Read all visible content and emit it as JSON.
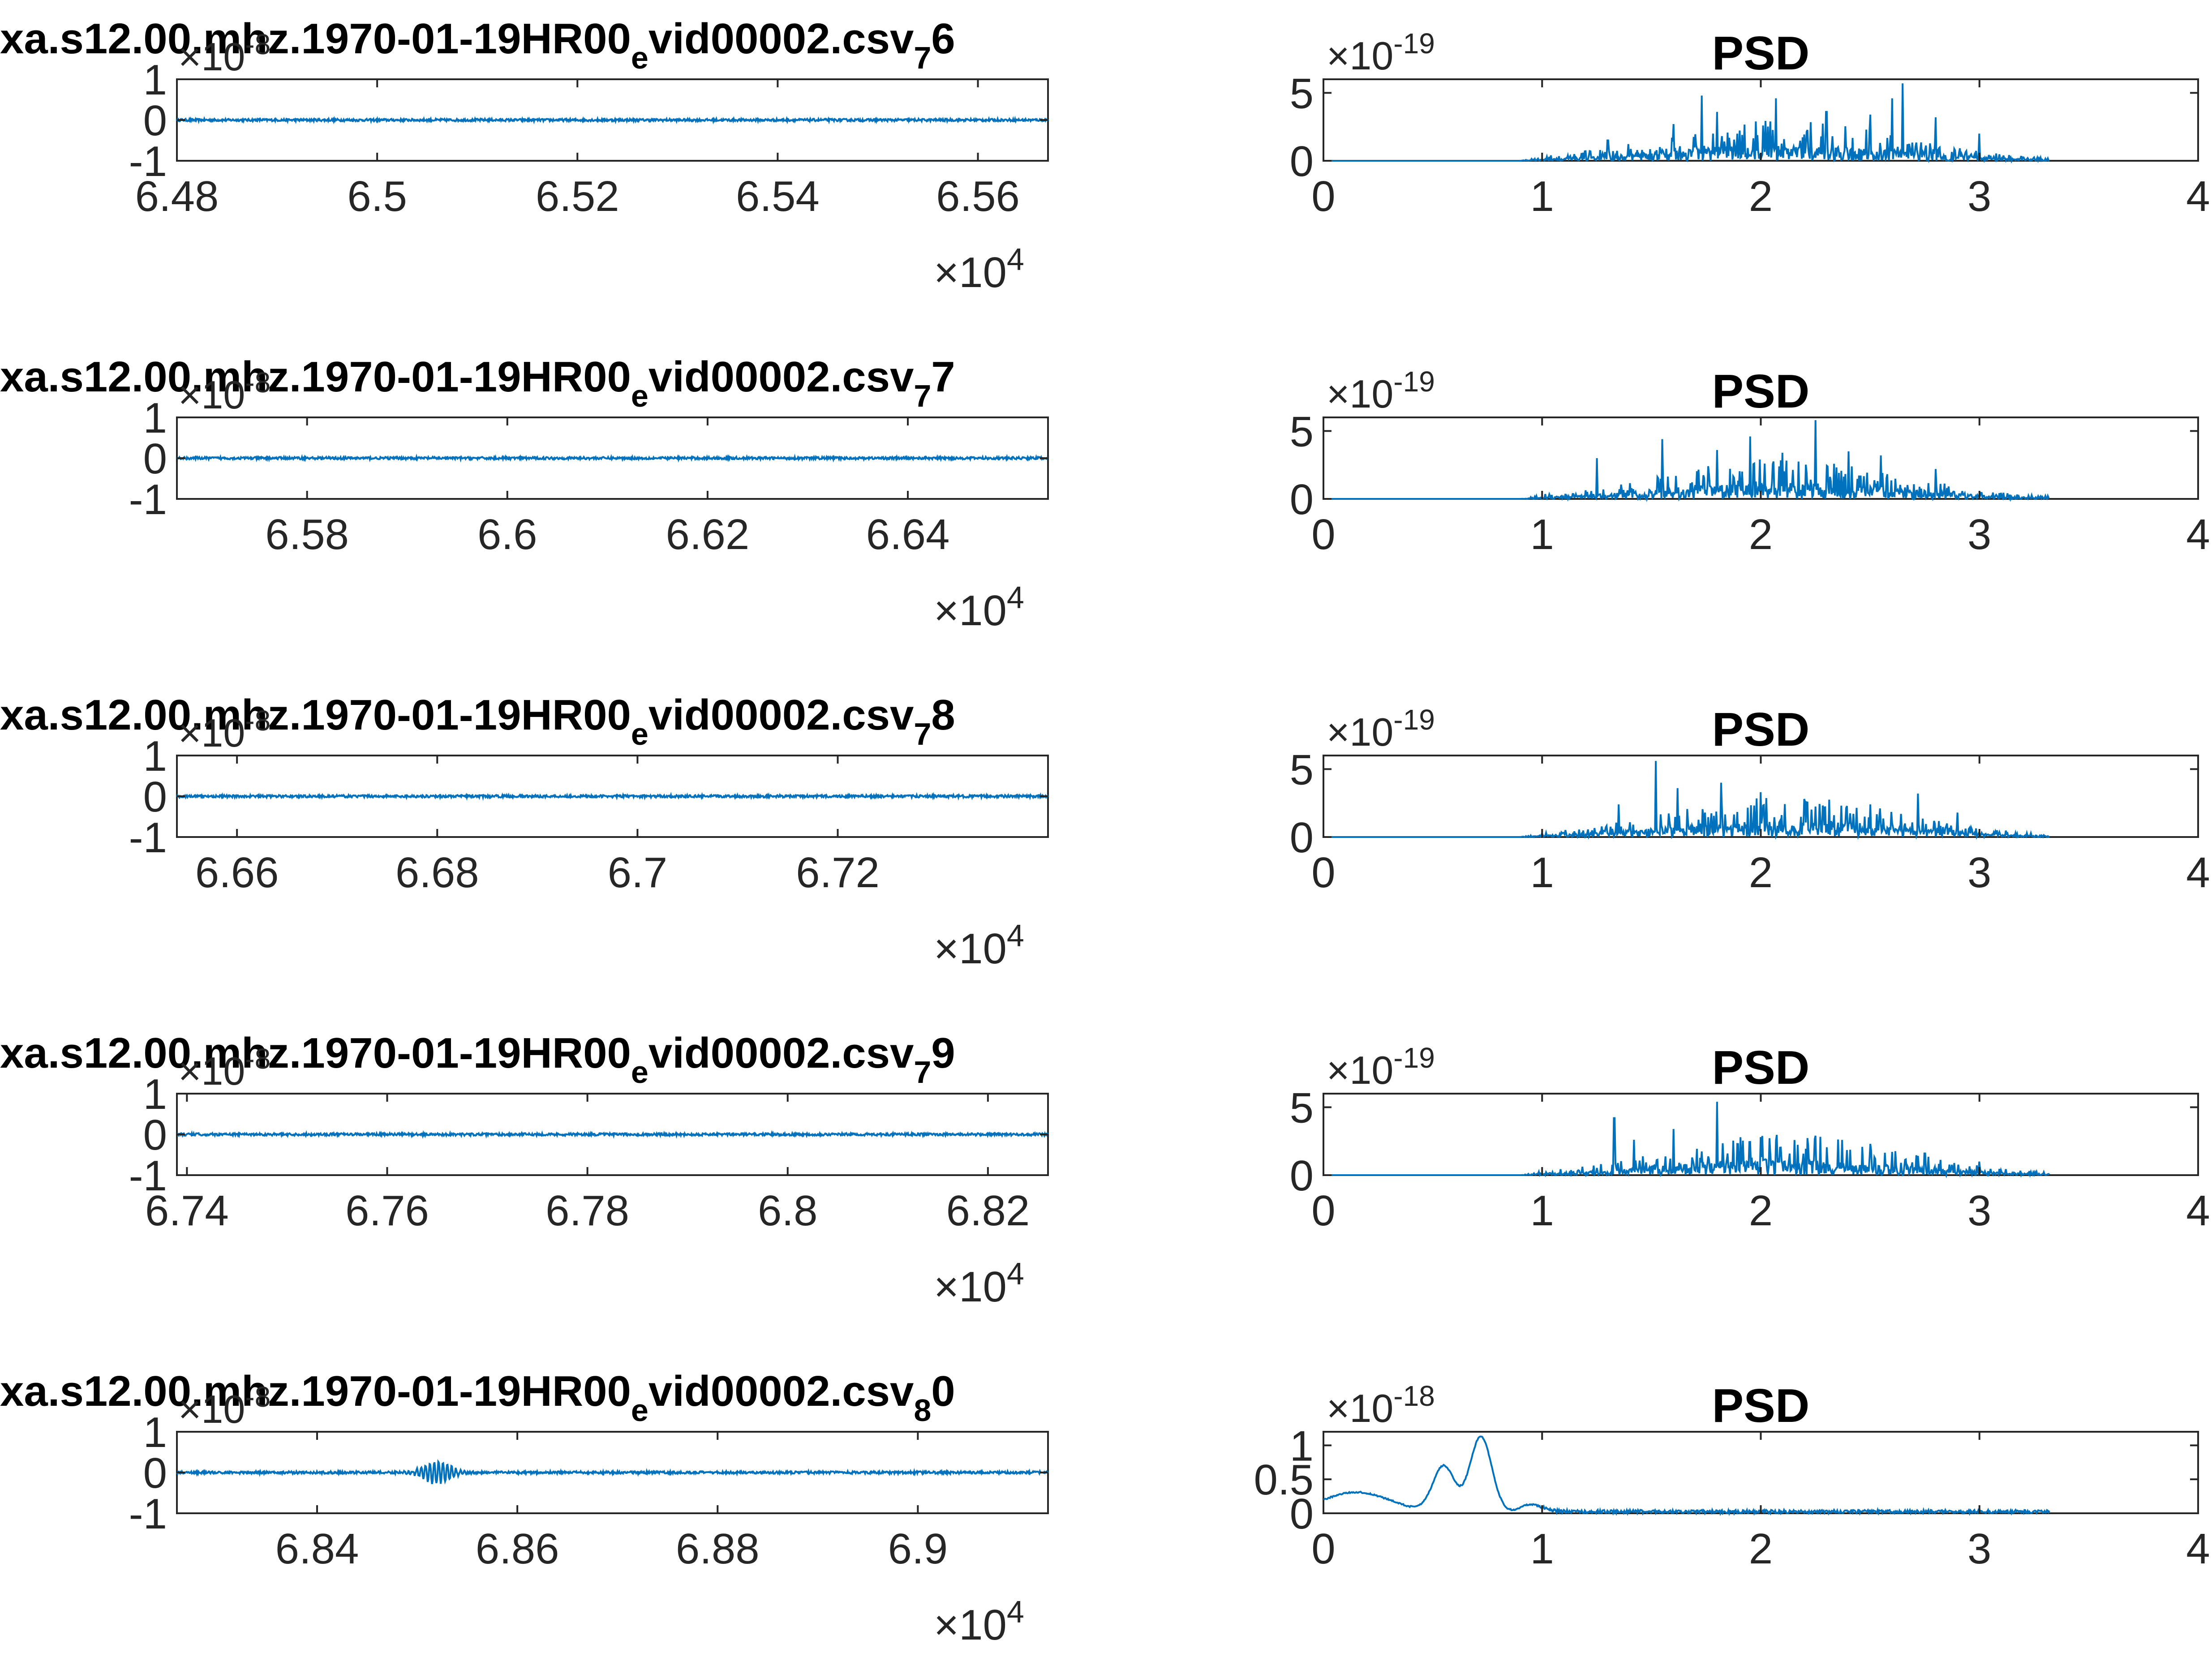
{
  "figure": {
    "rows": [
      {
        "id": "r6",
        "signal": {
          "title_main": "xa.s12.00.mhz.1970-01-19HR00",
          "title_sub": "e",
          "title_mid": "vid00002.csv",
          "title_sub2": "7",
          "title_end": "6",
          "y_exponent_base": "×10",
          "y_exponent_power": "-8",
          "x_exponent_base": "×10",
          "x_exponent_power": "4",
          "xlim": [
            6.48,
            6.567
          ],
          "ylim": [
            -1,
            1
          ],
          "xticks": [
            6.48,
            6.5,
            6.52,
            6.54,
            6.56
          ],
          "xtick_labels": [
            "6.48",
            "6.5",
            "6.52",
            "6.54",
            "6.56"
          ],
          "yticks": [
            -1,
            0,
            1
          ],
          "ytick_labels": [
            "-1",
            "0",
            "1"
          ]
        },
        "psd": {
          "title": "PSD",
          "y_exponent_base": "×10",
          "y_exponent_power": "-19",
          "xlim": [
            0,
            4
          ],
          "ylim": [
            0,
            6
          ],
          "xticks": [
            0,
            1,
            2,
            3,
            4
          ],
          "xtick_labels": [
            "0",
            "1",
            "2",
            "3",
            "4"
          ],
          "yticks": [
            0,
            5
          ],
          "ytick_labels": [
            "0",
            "5"
          ],
          "peaks": [
            [
              1.3,
              1.5
            ],
            [
              1.6,
              2.7
            ],
            [
              1.73,
              4.8
            ],
            [
              1.8,
              3.6
            ],
            [
              2.07,
              4.6
            ],
            [
              2.3,
              3.6
            ],
            [
              2.5,
              3.4
            ],
            [
              2.6,
              4.6
            ],
            [
              2.65,
              5.7
            ],
            [
              2.8,
              3.2
            ],
            [
              3.0,
              2.0
            ]
          ]
        }
      },
      {
        "id": "r7",
        "signal": {
          "title_main": "xa.s12.00.mhz.1970-01-19HR00",
          "title_sub": "e",
          "title_mid": "vid00002.csv",
          "title_sub2": "7",
          "title_end": "7",
          "y_exponent_base": "×10",
          "y_exponent_power": "-8",
          "x_exponent_base": "×10",
          "x_exponent_power": "4",
          "xlim": [
            6.567,
            6.654
          ],
          "ylim": [
            -1,
            1
          ],
          "xticks": [
            6.58,
            6.6,
            6.62,
            6.64
          ],
          "xtick_labels": [
            "6.58",
            "6.6",
            "6.62",
            "6.64"
          ],
          "yticks": [
            -1,
            0,
            1
          ],
          "ytick_labels": [
            "-1",
            "0",
            "1"
          ]
        },
        "psd": {
          "title": "PSD",
          "y_exponent_base": "×10",
          "y_exponent_power": "-19",
          "xlim": [
            0,
            4
          ],
          "ylim": [
            0,
            6
          ],
          "xticks": [
            0,
            1,
            2,
            3,
            4
          ],
          "xtick_labels": [
            "0",
            "1",
            "2",
            "3",
            "4"
          ],
          "yticks": [
            0,
            5
          ],
          "ytick_labels": [
            "0",
            "5"
          ],
          "peaks": [
            [
              1.25,
              3.0
            ],
            [
              1.55,
              4.4
            ],
            [
              1.8,
              3.6
            ],
            [
              1.95,
              4.6
            ],
            [
              2.1,
              3.4
            ],
            [
              2.25,
              5.8
            ],
            [
              2.4,
              3.5
            ],
            [
              2.55,
              3.2
            ],
            [
              2.8,
              2.2
            ]
          ]
        }
      },
      {
        "id": "r8",
        "signal": {
          "title_main": "xa.s12.00.mhz.1970-01-19HR00",
          "title_sub": "e",
          "title_mid": "vid00002.csv",
          "title_sub2": "7",
          "title_end": "8",
          "y_exponent_base": "×10",
          "y_exponent_power": "-8",
          "x_exponent_base": "×10",
          "x_exponent_power": "4",
          "xlim": [
            6.654,
            6.741
          ],
          "ylim": [
            -1,
            1
          ],
          "xticks": [
            6.66,
            6.68,
            6.7,
            6.72
          ],
          "xtick_labels": [
            "6.66",
            "6.68",
            "6.7",
            "6.72"
          ],
          "yticks": [
            -1,
            0,
            1
          ],
          "ytick_labels": [
            "-1",
            "0",
            "1"
          ]
        },
        "psd": {
          "title": "PSD",
          "y_exponent_base": "×10",
          "y_exponent_power": "-19",
          "xlim": [
            0,
            4
          ],
          "ylim": [
            0,
            6
          ],
          "xticks": [
            0,
            1,
            2,
            3,
            4
          ],
          "xtick_labels": [
            "0",
            "1",
            "2",
            "3",
            "4"
          ],
          "yticks": [
            0,
            5
          ],
          "ytick_labels": [
            "0",
            "5"
          ],
          "peaks": [
            [
              1.35,
              2.4
            ],
            [
              1.52,
              5.6
            ],
            [
              1.62,
              3.6
            ],
            [
              1.82,
              4.0
            ],
            [
              2.0,
              3.3
            ],
            [
              2.2,
              2.8
            ],
            [
              2.5,
              2.4
            ],
            [
              2.72,
              3.2
            ],
            [
              2.9,
              1.8
            ]
          ]
        }
      },
      {
        "id": "r9",
        "signal": {
          "title_main": "xa.s12.00.mhz.1970-01-19HR00",
          "title_sub": "e",
          "title_mid": "vid00002.csv",
          "title_sub2": "7",
          "title_end": "9",
          "y_exponent_base": "×10",
          "y_exponent_power": "-8",
          "x_exponent_base": "×10",
          "x_exponent_power": "4",
          "xlim": [
            6.739,
            6.826
          ],
          "ylim": [
            -1,
            1
          ],
          "xticks": [
            6.74,
            6.76,
            6.78,
            6.8,
            6.82
          ],
          "xtick_labels": [
            "6.74",
            "6.76",
            "6.78",
            "6.8",
            "6.82"
          ],
          "yticks": [
            -1,
            0,
            1
          ],
          "ytick_labels": [
            "-1",
            "0",
            "1"
          ]
        },
        "psd": {
          "title": "PSD",
          "y_exponent_base": "×10",
          "y_exponent_power": "-19",
          "xlim": [
            0,
            4
          ],
          "ylim": [
            0,
            6
          ],
          "xticks": [
            0,
            1,
            2,
            3,
            4
          ],
          "xtick_labels": [
            "0",
            "1",
            "2",
            "3",
            "4"
          ],
          "yticks": [
            0,
            5
          ],
          "ytick_labels": [
            "0",
            "5"
          ],
          "peaks": [
            [
              1.33,
              4.2
            ],
            [
              1.42,
              2.6
            ],
            [
              1.6,
              3.4
            ],
            [
              1.8,
              5.4
            ],
            [
              2.0,
              2.8
            ],
            [
              2.25,
              2.9
            ],
            [
              2.5,
              2.3
            ],
            [
              2.75,
              1.6
            ],
            [
              3.0,
              1.0
            ]
          ]
        }
      },
      {
        "id": "r80",
        "signal": {
          "title_main": "xa.s12.00.mhz.1970-01-19HR00",
          "title_sub": "e",
          "title_mid": "vid00002.csv",
          "title_sub2": "8",
          "title_end": "0",
          "y_exponent_base": "×10",
          "y_exponent_power": "-8",
          "x_exponent_base": "×10",
          "x_exponent_power": "4",
          "xlim": [
            6.826,
            6.913
          ],
          "ylim": [
            -1,
            1
          ],
          "xticks": [
            6.84,
            6.86,
            6.88,
            6.9
          ],
          "xtick_labels": [
            "6.84",
            "6.86",
            "6.88",
            "6.9"
          ],
          "yticks": [
            -1,
            0,
            1
          ],
          "ytick_labels": [
            "-1",
            "0",
            "1"
          ],
          "burst_center": 6.852
        },
        "psd": {
          "title": "PSD",
          "y_exponent_base": "×10",
          "y_exponent_power": "-18",
          "xlim": [
            0,
            4
          ],
          "ylim": [
            0,
            1.2
          ],
          "xticks": [
            0,
            1,
            2,
            3,
            4
          ],
          "xtick_labels": [
            "0",
            "1",
            "2",
            "3",
            "4"
          ],
          "yticks": [
            0,
            0.5,
            1
          ],
          "ytick_labels": [
            "0",
            "0.5",
            "1"
          ],
          "bumps": [
            [
              0.15,
              0.3
            ],
            [
              0.55,
              0.68
            ],
            [
              0.72,
              1.12
            ],
            [
              0.95,
              0.12
            ]
          ]
        }
      }
    ]
  }
}
